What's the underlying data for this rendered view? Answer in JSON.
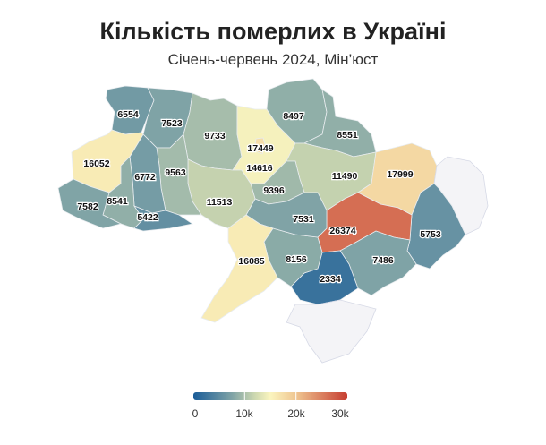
{
  "title": "Кількість померлих в Україні",
  "subtitle": "Січень-червень 2024, Мін’юст",
  "chart_data": {
    "type": "choropleth",
    "regions": [
      {
        "id": "volyn",
        "value": 6554
      },
      {
        "id": "rivne",
        "value": 7523
      },
      {
        "id": "zhytomyr",
        "value": 9733
      },
      {
        "id": "kyiv-oblast",
        "value": 14616
      },
      {
        "id": "kyiv-city",
        "value": 17449
      },
      {
        "id": "chernihiv",
        "value": 8497
      },
      {
        "id": "sumy",
        "value": 8551
      },
      {
        "id": "poltava",
        "value": 11490
      },
      {
        "id": "kharkiv",
        "value": 17999
      },
      {
        "id": "luhansk",
        "value": null
      },
      {
        "id": "donetsk",
        "value": 5753
      },
      {
        "id": "dnipro",
        "value": 26374
      },
      {
        "id": "zaporizhzhia",
        "value": 7486
      },
      {
        "id": "kherson",
        "value": 2334
      },
      {
        "id": "mykolaiv",
        "value": 8156
      },
      {
        "id": "cherkasy",
        "value": 9396
      },
      {
        "id": "kirovohrad",
        "value": 7531
      },
      {
        "id": "odesa",
        "value": 16085
      },
      {
        "id": "vinnytsia",
        "value": 11513
      },
      {
        "id": "khmelnytskyi",
        "value": 9563
      },
      {
        "id": "ternopil",
        "value": 6772
      },
      {
        "id": "lviv",
        "value": 16052
      },
      {
        "id": "ivano-frankivsk",
        "value": 8541
      },
      {
        "id": "zakarpattia",
        "value": 7582
      },
      {
        "id": "chernivtsi",
        "value": 5422
      },
      {
        "id": "crimea",
        "value": null
      }
    ],
    "legend": {
      "ticks": [
        "0",
        "10k",
        "20k",
        "30k"
      ],
      "range": [
        0,
        30000
      ]
    },
    "colors": {
      "low": "#1a5c98",
      "mid": "#fbf5bf",
      "high": "#c63d31",
      "no_data": "#f4f4f7"
    }
  }
}
